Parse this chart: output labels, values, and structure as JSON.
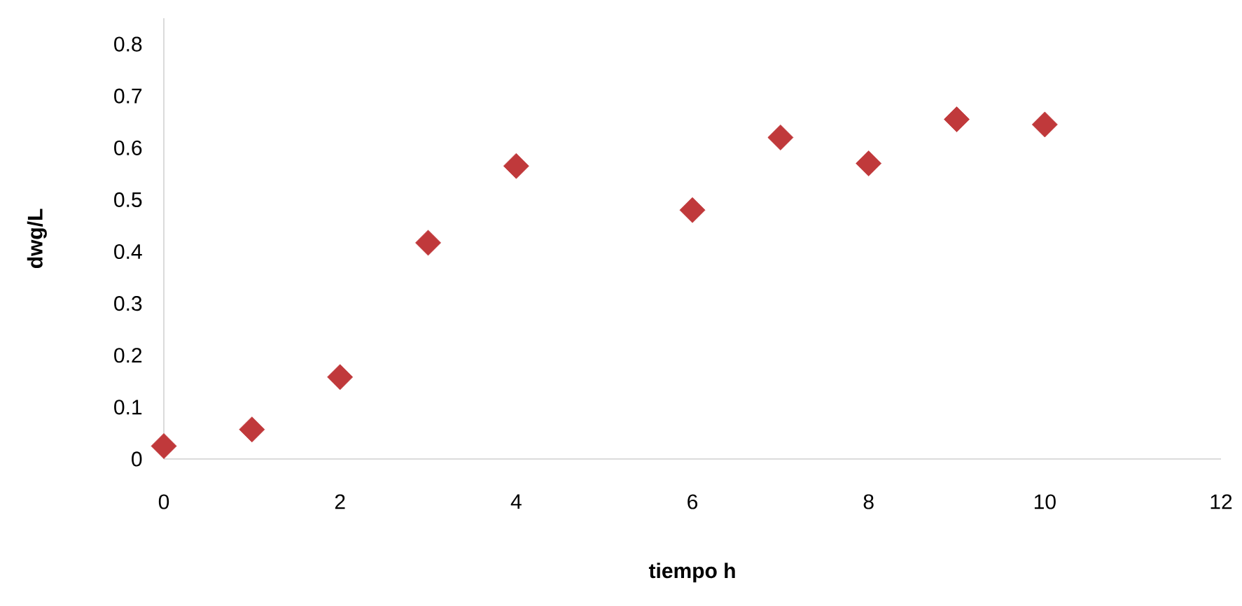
{
  "chart_data": {
    "type": "scatter",
    "xlabel": "tiempo h",
    "ylabel": "dwg/L",
    "x": [
      0,
      1,
      2,
      3,
      4,
      6,
      7,
      8,
      9,
      10
    ],
    "series": [
      {
        "color": "#c0393b",
        "values": [
          0.025,
          0.057,
          0.158,
          0.417,
          0.565,
          0.48,
          0.62,
          0.57,
          0.655,
          0.645
        ]
      }
    ],
    "xlim": [
      0,
      12
    ],
    "xticks": [
      0,
      2,
      4,
      6,
      8,
      10,
      12
    ],
    "ylim": [
      0,
      0.85
    ],
    "yticks": [
      0,
      0.1,
      0.2,
      0.3,
      0.4,
      0.5,
      0.6,
      0.7,
      0.8
    ],
    "marker": "diamond",
    "grid": false
  }
}
